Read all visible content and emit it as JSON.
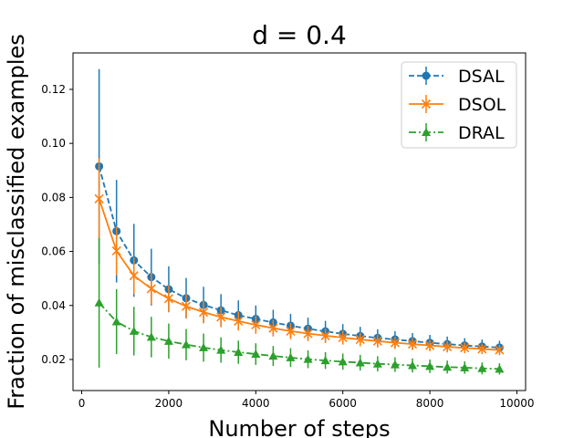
{
  "chart_data": {
    "type": "line",
    "title": "d = 0.4",
    "xlabel": "Number of steps",
    "ylabel": "Fraction of misclassified examples",
    "xlim": [
      -200,
      10200
    ],
    "ylim": [
      0.0085,
      0.1335
    ],
    "xticks": [
      0,
      2000,
      4000,
      6000,
      8000,
      10000
    ],
    "yticks": [
      0.02,
      0.04,
      0.06,
      0.08,
      0.1,
      0.12
    ],
    "ytick_labels": [
      "0.02",
      "0.04",
      "0.06",
      "0.08",
      "0.10",
      "0.12"
    ],
    "grid": false,
    "legend": "top-right",
    "x": [
      400,
      800,
      1200,
      1600,
      2000,
      2400,
      2800,
      3200,
      3600,
      4000,
      4400,
      4800,
      5200,
      5600,
      6000,
      6400,
      6800,
      7200,
      7600,
      8000,
      8400,
      8800,
      9200,
      9600
    ],
    "series": [
      {
        "name": "DSAL",
        "color": "#1f77b4",
        "line_style": "dashed",
        "marker": "circle",
        "values": [
          0.0915,
          0.0675,
          0.0567,
          0.0505,
          0.046,
          0.0427,
          0.0402,
          0.0382,
          0.0364,
          0.035,
          0.0337,
          0.0325,
          0.0314,
          0.0304,
          0.0295,
          0.0287,
          0.028,
          0.0274,
          0.0268,
          0.0262,
          0.0257,
          0.0252,
          0.0248,
          0.0244
        ],
        "errors": [
          0.036,
          0.019,
          0.0135,
          0.0105,
          0.0085,
          0.0075,
          0.0067,
          0.006,
          0.0055,
          0.005,
          0.0047,
          0.0044,
          0.0041,
          0.0039,
          0.0036,
          0.0034,
          0.0032,
          0.0031,
          0.003,
          0.0029,
          0.0028,
          0.0027,
          0.0026,
          0.0025
        ]
      },
      {
        "name": "DSOL",
        "color": "#ff7f0e",
        "line_style": "solid",
        "marker": "x",
        "values": [
          0.0795,
          0.0602,
          0.051,
          0.0462,
          0.0425,
          0.0397,
          0.0375,
          0.0357,
          0.0342,
          0.0328,
          0.0316,
          0.0305,
          0.0296,
          0.0288,
          0.0281,
          0.0274,
          0.0268,
          0.0262,
          0.0257,
          0.0252,
          0.0247,
          0.0243,
          0.0239,
          0.0235
        ],
        "errors": [
          0.015,
          0.009,
          0.0068,
          0.0058,
          0.005,
          0.0045,
          0.0041,
          0.0038,
          0.0035,
          0.0033,
          0.0031,
          0.003,
          0.0028,
          0.0027,
          0.0026,
          0.0025,
          0.0024,
          0.0023,
          0.0022,
          0.0021,
          0.0021,
          0.002,
          0.0019,
          0.0019
        ]
      },
      {
        "name": "DRAL",
        "color": "#2ca02c",
        "line_style": "dashdot",
        "marker": "triangle",
        "values": [
          0.041,
          0.034,
          0.0305,
          0.0283,
          0.0268,
          0.0255,
          0.0244,
          0.0235,
          0.0227,
          0.022,
          0.0213,
          0.0207,
          0.0201,
          0.0196,
          0.0192,
          0.0188,
          0.0184,
          0.0181,
          0.0178,
          0.0175,
          0.0172,
          0.017,
          0.0167,
          0.0165
        ],
        "errors": [
          0.024,
          0.012,
          0.009,
          0.0075,
          0.0065,
          0.0058,
          0.0052,
          0.0047,
          0.0043,
          0.004,
          0.0037,
          0.0035,
          0.0033,
          0.0031,
          0.003,
          0.0029,
          0.0028,
          0.0027,
          0.0026,
          0.0025,
          0.0024,
          0.0023,
          0.0022,
          0.0021
        ]
      }
    ]
  }
}
